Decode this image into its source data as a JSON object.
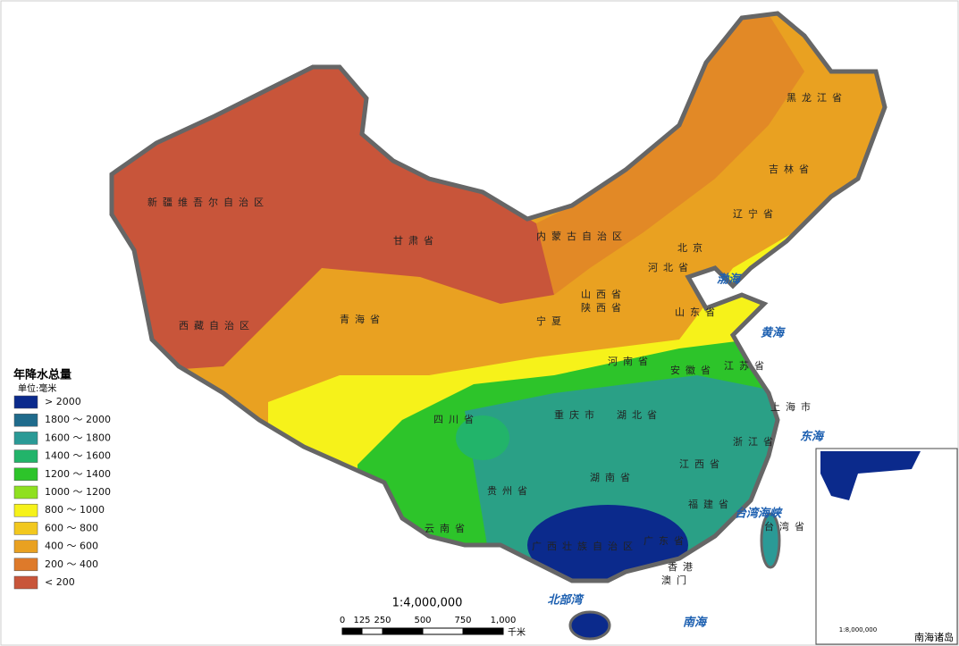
{
  "legend": {
    "title": "年降水总量",
    "unit": "单位:毫米",
    "items": [
      {
        "label": "> 2000",
        "color": "#0b2a8c"
      },
      {
        "label": "1800 ～ 2000",
        "color": "#1f6b8c"
      },
      {
        "label": "1600 ～ 1800",
        "color": "#2a9a96"
      },
      {
        "label": "1400 ～ 1600",
        "color": "#22b46a"
      },
      {
        "label": "1200 ～ 1400",
        "color": "#2dc42a"
      },
      {
        "label": "1000 ～ 1200",
        "color": "#8fe020"
      },
      {
        "label": "800 ～ 1000",
        "color": "#f6f21a"
      },
      {
        "label": "600 ～ 800",
        "color": "#f2c81e"
      },
      {
        "label": "400 ～ 600",
        "color": "#e9a121"
      },
      {
        "label": "200 ～ 400",
        "color": "#de7a2a"
      },
      {
        "label": "< 200",
        "color": "#c8553a"
      }
    ]
  },
  "regions": [
    "新疆维吾尔自治区",
    "西藏自治区",
    "青海省",
    "甘肃省",
    "内蒙古自治区",
    "黑龙江省",
    "吉林省",
    "辽宁省",
    "北京",
    "河北省",
    "山西省",
    "陕西省",
    "宁夏",
    "山东省",
    "河南省",
    "四川省",
    "重庆市",
    "湖北省",
    "安徽省",
    "江苏省",
    "上海市",
    "浙江省",
    "江西省",
    "湖南省",
    "贵州省",
    "云南省",
    "广西壮族自治区",
    "广东省",
    "福建省",
    "台湾省",
    "香港",
    "澳门"
  ],
  "seas": [
    "渤海",
    "黄海",
    "东海",
    "台湾海峡",
    "南海",
    "北部湾"
  ],
  "scale": {
    "ratio": "1:4,000,000",
    "ticks": [
      "0",
      "125",
      "250",
      "500",
      "750",
      "1,000"
    ],
    "unit": "千米"
  },
  "inset": {
    "title": "南海诸岛",
    "scale": "1:8,000,000"
  }
}
